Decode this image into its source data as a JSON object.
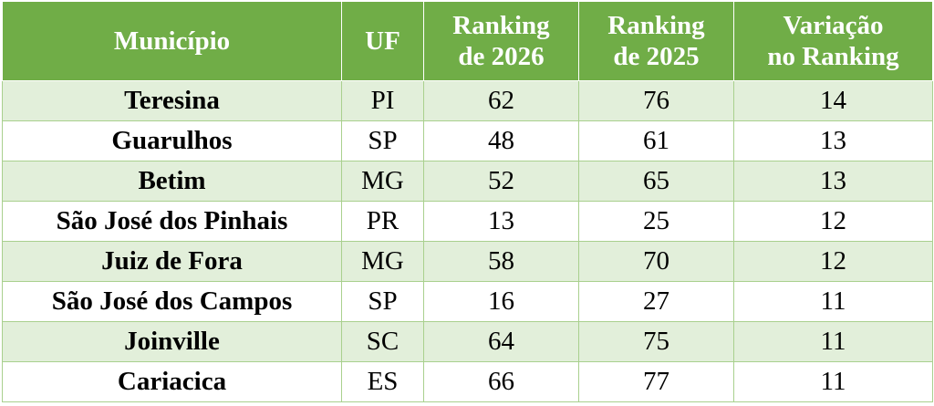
{
  "table": {
    "header": [
      [
        "Município"
      ],
      [
        "UF"
      ],
      [
        "Ranking",
        "de 2026"
      ],
      [
        "Ranking",
        "de 2025"
      ],
      [
        "Variação",
        "no Ranking"
      ]
    ],
    "rows": [
      [
        "Teresina",
        "PI",
        62,
        76,
        14
      ],
      [
        "Guarulhos",
        "SP",
        48,
        61,
        13
      ],
      [
        "Betim",
        "MG",
        52,
        65,
        13
      ],
      [
        "São José dos Pinhais",
        "PR",
        13,
        25,
        12
      ],
      [
        "Juiz de Fora",
        "MG",
        58,
        70,
        12
      ],
      [
        "São José dos Campos",
        "SP",
        16,
        27,
        11
      ],
      [
        "Joinville",
        "SC",
        64,
        75,
        11
      ],
      [
        "Cariacica",
        "ES",
        66,
        77,
        11
      ]
    ]
  }
}
